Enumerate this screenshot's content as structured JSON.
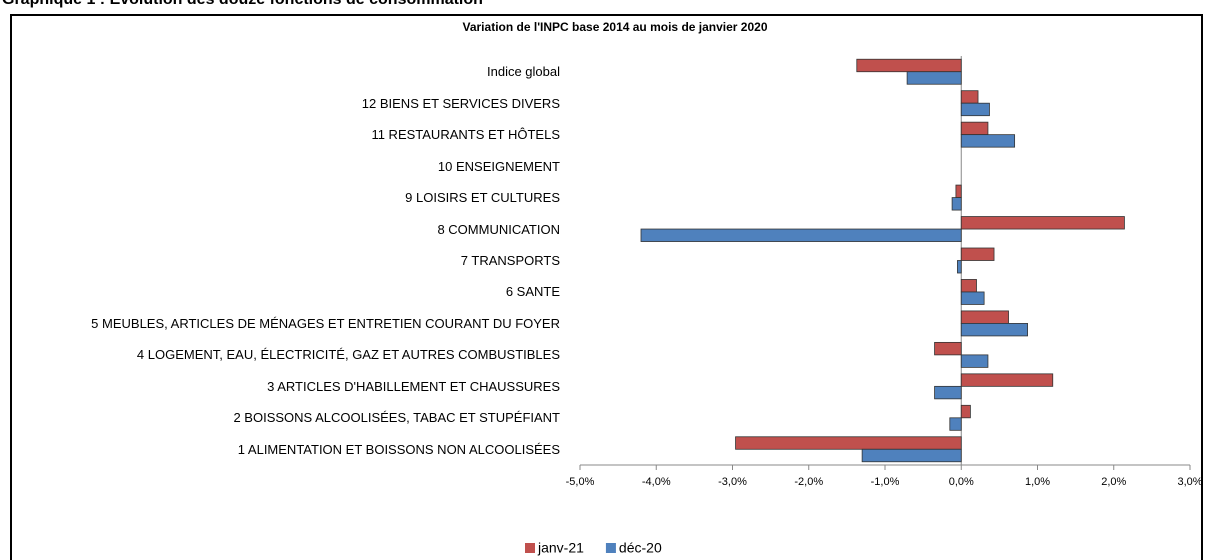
{
  "page_title": "Graphique 1 : Evolution des douze fonctions de consommation",
  "chart_data": {
    "type": "bar",
    "orientation": "horizontal",
    "title": "Variation de l'INPC base 2014 au mois de janvier 2020",
    "categories": [
      "Indice global",
      "12 BIENS ET SERVICES DIVERS",
      "11 RESTAURANTS ET HÔTELS",
      "10 ENSEIGNEMENT",
      "9 LOISIRS ET CULTURES",
      "8 COMMUNICATION",
      "7 TRANSPORTS",
      "6 SANTE",
      "5 MEUBLES, ARTICLES DE MÉNAGES ET ENTRETIEN COURANT DU FOYER",
      "4 LOGEMENT, EAU, ÉLECTRICITÉ, GAZ ET AUTRES COMBUSTIBLES",
      "3 ARTICLES D'HABILLEMENT ET CHAUSSURES",
      "2 BOISSONS ALCOOLISÉES, TABAC ET STUPÉFIANT",
      "1 ALIMENTATION ET BOISSONS NON ALCOOLISÉES"
    ],
    "series": [
      {
        "name": "janv-21",
        "color": "#c0504d",
        "values": [
          -1.37,
          0.22,
          0.35,
          0,
          -0.07,
          2.14,
          0.43,
          0.2,
          0.62,
          -0.35,
          1.2,
          0.12,
          -2.96
        ]
      },
      {
        "name": "déc-20",
        "color": "#4f81bd",
        "values": [
          -0.71,
          0.37,
          0.7,
          0,
          -0.12,
          -4.2,
          -0.05,
          0.3,
          0.87,
          0.35,
          -0.35,
          -0.15,
          -1.3
        ]
      }
    ],
    "xlim": [
      -5,
      3
    ],
    "xticks": [
      {
        "value": -5,
        "label": "-5,0%"
      },
      {
        "value": -4,
        "label": "-4,0%"
      },
      {
        "value": -3,
        "label": "-3,0%"
      },
      {
        "value": -2,
        "label": "-2,0%"
      },
      {
        "value": -1,
        "label": "-1,0%"
      },
      {
        "value": 0,
        "label": "0,0%"
      },
      {
        "value": 1,
        "label": "1,0%"
      },
      {
        "value": 2,
        "label": "2,0%"
      },
      {
        "value": 3,
        "label": "3,0%"
      }
    ],
    "legend": "bottom"
  }
}
